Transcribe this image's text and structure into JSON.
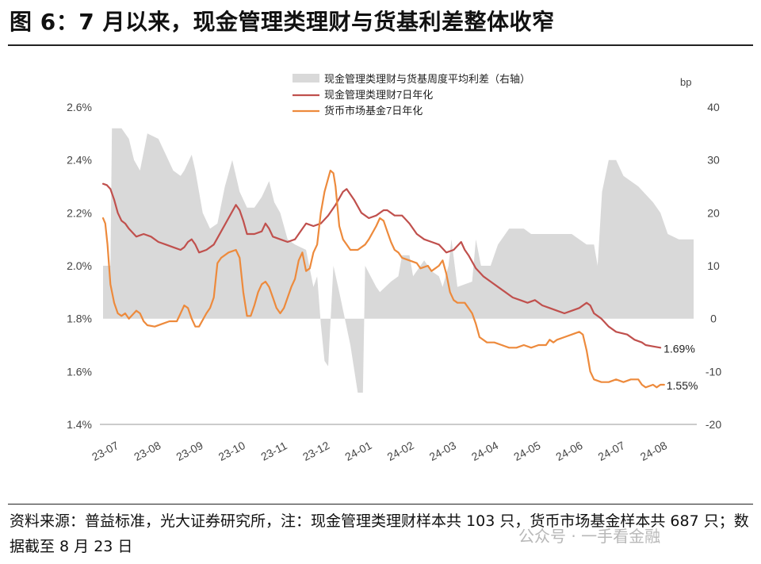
{
  "figure": {
    "title": "图 6：7 月以来，现金管理类理财与货基利差整体收窄",
    "source": "资料来源：普益标准，光大证券研究所，注：现金管理类理财样本共 103 只，货币市场基金样本共 687 只；数据截至 8 月 23 日",
    "watermark": "公众号 · 一手看金融"
  },
  "colors": {
    "spread_area": "#d9d9d9",
    "cash_mgmt_line": "#c0504d",
    "mmf_line": "#ed8a3c",
    "axis_text": "#444444"
  },
  "chart_data": {
    "type": "line",
    "title": "",
    "y_left": {
      "label": "",
      "lim": [
        1.4,
        2.6
      ],
      "ticks": [
        "1.4%",
        "1.6%",
        "1.8%",
        "2.0%",
        "2.2%",
        "2.4%",
        "2.6%"
      ]
    },
    "y_right": {
      "label": "bp",
      "lim": [
        -20,
        40
      ],
      "ticks": [
        "-20",
        "-10",
        "0",
        "10",
        "20",
        "30",
        "40"
      ]
    },
    "x_ticks": [
      "23-07",
      "23-08",
      "23-09",
      "23-10",
      "23-11",
      "23-12",
      "24-01",
      "24-02",
      "24-03",
      "24-04",
      "24-05",
      "24-06",
      "24-07",
      "24-08"
    ],
    "legend_position": "top",
    "end_labels": {
      "cash_mgmt": "1.69%",
      "mmf": "1.55%"
    },
    "series": [
      {
        "name": "现金管理类理财与货基周度平均利差（右轴）",
        "type": "area",
        "axis": "right",
        "values": [
          [
            0,
            10
          ],
          [
            0.1,
            10
          ],
          [
            0.12,
            36
          ],
          [
            0.25,
            36
          ],
          [
            0.35,
            34
          ],
          [
            0.42,
            30
          ],
          [
            0.5,
            28
          ],
          [
            0.6,
            35
          ],
          [
            0.75,
            34
          ],
          [
            0.85,
            31
          ],
          [
            0.95,
            28
          ],
          [
            1.05,
            27
          ],
          [
            1.1,
            28
          ],
          [
            1.2,
            31
          ],
          [
            1.25,
            28
          ],
          [
            1.35,
            20
          ],
          [
            1.45,
            17
          ],
          [
            1.55,
            18
          ],
          [
            1.65,
            25
          ],
          [
            1.75,
            30
          ],
          [
            1.85,
            24
          ],
          [
            1.95,
            21
          ],
          [
            2.05,
            21
          ],
          [
            2.15,
            23
          ],
          [
            2.25,
            26
          ],
          [
            2.32,
            22
          ],
          [
            2.4,
            20
          ],
          [
            2.5,
            15
          ],
          [
            2.6,
            14
          ],
          [
            2.75,
            13
          ],
          [
            2.85,
            6
          ],
          [
            2.9,
            8
          ],
          [
            2.95,
            -1
          ],
          [
            3.0,
            -8
          ],
          [
            3.05,
            -9
          ],
          [
            3.12,
            10
          ],
          [
            3.2,
            5
          ],
          [
            3.35,
            -5
          ],
          [
            3.45,
            -14
          ],
          [
            3.52,
            -14
          ],
          [
            3.55,
            10
          ],
          [
            3.7,
            6
          ],
          [
            3.75,
            5
          ],
          [
            3.9,
            7
          ],
          [
            4.0,
            8
          ],
          [
            4.05,
            12
          ],
          [
            4.15,
            12
          ],
          [
            4.2,
            8
          ],
          [
            4.35,
            11
          ],
          [
            4.45,
            9
          ],
          [
            4.55,
            8
          ],
          [
            4.6,
            6
          ],
          [
            4.68,
            10
          ],
          [
            4.72,
            15
          ],
          [
            4.8,
            6
          ],
          [
            5.0,
            7
          ],
          [
            5.05,
            15
          ],
          [
            5.12,
            10
          ],
          [
            5.25,
            10
          ],
          [
            5.35,
            14
          ],
          [
            5.5,
            17
          ],
          [
            5.7,
            17
          ],
          [
            5.8,
            16
          ],
          [
            6.05,
            16
          ],
          [
            6.35,
            16
          ],
          [
            6.45,
            15
          ],
          [
            6.55,
            14
          ],
          [
            6.65,
            14
          ],
          [
            6.7,
            10
          ],
          [
            6.76,
            24
          ],
          [
            6.85,
            30
          ],
          [
            6.95,
            30
          ],
          [
            7.05,
            27
          ],
          [
            7.25,
            25
          ],
          [
            7.45,
            22
          ],
          [
            7.55,
            20
          ],
          [
            7.65,
            16
          ],
          [
            7.8,
            15
          ],
          [
            7.95,
            15
          ],
          [
            8.0,
            15
          ]
        ]
      },
      {
        "name": "现金管理类理财7日年化",
        "type": "line",
        "axis": "left",
        "values": [
          [
            0,
            2.31
          ],
          [
            0.05,
            2.305
          ],
          [
            0.1,
            2.29
          ],
          [
            0.15,
            2.25
          ],
          [
            0.2,
            2.2
          ],
          [
            0.25,
            2.17
          ],
          [
            0.3,
            2.16
          ],
          [
            0.35,
            2.14
          ],
          [
            0.45,
            2.11
          ],
          [
            0.55,
            2.12
          ],
          [
            0.65,
            2.11
          ],
          [
            0.75,
            2.09
          ],
          [
            0.85,
            2.08
          ],
          [
            0.95,
            2.07
          ],
          [
            1.05,
            2.06
          ],
          [
            1.1,
            2.07
          ],
          [
            1.15,
            2.09
          ],
          [
            1.2,
            2.1
          ],
          [
            1.25,
            2.08
          ],
          [
            1.3,
            2.05
          ],
          [
            1.4,
            2.06
          ],
          [
            1.5,
            2.08
          ],
          [
            1.6,
            2.13
          ],
          [
            1.7,
            2.18
          ],
          [
            1.8,
            2.23
          ],
          [
            1.85,
            2.21
          ],
          [
            1.9,
            2.17
          ],
          [
            1.95,
            2.12
          ],
          [
            2.05,
            2.12
          ],
          [
            2.15,
            2.13
          ],
          [
            2.2,
            2.16
          ],
          [
            2.25,
            2.14
          ],
          [
            2.3,
            2.11
          ],
          [
            2.4,
            2.1
          ],
          [
            2.5,
            2.09
          ],
          [
            2.6,
            2.1
          ],
          [
            2.65,
            2.12
          ],
          [
            2.75,
            2.16
          ],
          [
            2.85,
            2.15
          ],
          [
            2.95,
            2.16
          ],
          [
            3.05,
            2.19
          ],
          [
            3.15,
            2.23
          ],
          [
            3.25,
            2.28
          ],
          [
            3.3,
            2.29
          ],
          [
            3.4,
            2.25
          ],
          [
            3.5,
            2.2
          ],
          [
            3.6,
            2.18
          ],
          [
            3.7,
            2.19
          ],
          [
            3.8,
            2.21
          ],
          [
            3.85,
            2.21
          ],
          [
            3.95,
            2.19
          ],
          [
            4.05,
            2.19
          ],
          [
            4.15,
            2.16
          ],
          [
            4.25,
            2.12
          ],
          [
            4.35,
            2.1
          ],
          [
            4.45,
            2.09
          ],
          [
            4.55,
            2.08
          ],
          [
            4.65,
            2.05
          ],
          [
            4.75,
            2.06
          ],
          [
            4.85,
            2.09
          ],
          [
            4.9,
            2.06
          ],
          [
            4.95,
            2.04
          ],
          [
            5.05,
            1.99
          ],
          [
            5.15,
            1.96
          ],
          [
            5.25,
            1.94
          ],
          [
            5.35,
            1.92
          ],
          [
            5.45,
            1.9
          ],
          [
            5.55,
            1.88
          ],
          [
            5.65,
            1.87
          ],
          [
            5.75,
            1.86
          ],
          [
            5.85,
            1.87
          ],
          [
            5.95,
            1.85
          ],
          [
            6.05,
            1.84
          ],
          [
            6.15,
            1.83
          ],
          [
            6.25,
            1.82
          ],
          [
            6.35,
            1.83
          ],
          [
            6.45,
            1.84
          ],
          [
            6.55,
            1.86
          ],
          [
            6.6,
            1.85
          ],
          [
            6.65,
            1.82
          ],
          [
            6.75,
            1.8
          ],
          [
            6.85,
            1.77
          ],
          [
            6.95,
            1.75
          ],
          [
            7.1,
            1.74
          ],
          [
            7.2,
            1.72
          ],
          [
            7.3,
            1.71
          ],
          [
            7.35,
            1.7
          ],
          [
            7.45,
            1.695
          ],
          [
            7.55,
            1.69
          ]
        ]
      },
      {
        "name": "货币市场基金7日年化",
        "type": "line",
        "axis": "left",
        "values": [
          [
            0,
            2.18
          ],
          [
            0.03,
            2.16
          ],
          [
            0.06,
            2.08
          ],
          [
            0.1,
            1.93
          ],
          [
            0.15,
            1.86
          ],
          [
            0.2,
            1.82
          ],
          [
            0.25,
            1.81
          ],
          [
            0.3,
            1.82
          ],
          [
            0.35,
            1.8
          ],
          [
            0.45,
            1.83
          ],
          [
            0.5,
            1.82
          ],
          [
            0.55,
            1.79
          ],
          [
            0.6,
            1.775
          ],
          [
            0.7,
            1.77
          ],
          [
            0.8,
            1.78
          ],
          [
            0.9,
            1.79
          ],
          [
            1.0,
            1.79
          ],
          [
            1.05,
            1.82
          ],
          [
            1.1,
            1.85
          ],
          [
            1.15,
            1.84
          ],
          [
            1.2,
            1.8
          ],
          [
            1.25,
            1.77
          ],
          [
            1.3,
            1.77
          ],
          [
            1.4,
            1.82
          ],
          [
            1.45,
            1.84
          ],
          [
            1.5,
            1.88
          ],
          [
            1.55,
            2.01
          ],
          [
            1.6,
            2.03
          ],
          [
            1.7,
            2.05
          ],
          [
            1.8,
            2.06
          ],
          [
            1.85,
            2.03
          ],
          [
            1.9,
            1.9
          ],
          [
            1.95,
            1.81
          ],
          [
            2.0,
            1.81
          ],
          [
            2.05,
            1.85
          ],
          [
            2.1,
            1.9
          ],
          [
            2.15,
            1.93
          ],
          [
            2.2,
            1.94
          ],
          [
            2.25,
            1.92
          ],
          [
            2.3,
            1.88
          ],
          [
            2.35,
            1.84
          ],
          [
            2.4,
            1.82
          ],
          [
            2.45,
            1.84
          ],
          [
            2.55,
            1.92
          ],
          [
            2.6,
            1.95
          ],
          [
            2.65,
            2.02
          ],
          [
            2.7,
            2.05
          ],
          [
            2.75,
            1.98
          ],
          [
            2.8,
            1.99
          ],
          [
            2.85,
            2.05
          ],
          [
            2.9,
            2.08
          ],
          [
            2.95,
            2.2
          ],
          [
            3.0,
            2.28
          ],
          [
            3.05,
            2.33
          ],
          [
            3.08,
            2.36
          ],
          [
            3.12,
            2.35
          ],
          [
            3.15,
            2.3
          ],
          [
            3.2,
            2.15
          ],
          [
            3.25,
            2.1
          ],
          [
            3.3,
            2.08
          ],
          [
            3.35,
            2.06
          ],
          [
            3.45,
            2.06
          ],
          [
            3.55,
            2.08
          ],
          [
            3.6,
            2.1
          ],
          [
            3.7,
            2.15
          ],
          [
            3.75,
            2.18
          ],
          [
            3.8,
            2.17
          ],
          [
            3.85,
            2.13
          ],
          [
            3.9,
            2.09
          ],
          [
            3.95,
            2.06
          ],
          [
            4.0,
            2.05
          ],
          [
            4.05,
            2.03
          ],
          [
            4.15,
            2.02
          ],
          [
            4.25,
            2.01
          ],
          [
            4.3,
            1.99
          ],
          [
            4.4,
            2.0
          ],
          [
            4.45,
            1.98
          ],
          [
            4.55,
            2.0
          ],
          [
            4.6,
            2.02
          ],
          [
            4.65,
            1.97
          ],
          [
            4.7,
            1.9
          ],
          [
            4.75,
            1.87
          ],
          [
            4.8,
            1.86
          ],
          [
            4.9,
            1.86
          ],
          [
            4.95,
            1.84
          ],
          [
            5.0,
            1.82
          ],
          [
            5.05,
            1.78
          ],
          [
            5.1,
            1.73
          ],
          [
            5.2,
            1.71
          ],
          [
            5.3,
            1.71
          ],
          [
            5.4,
            1.7
          ],
          [
            5.5,
            1.69
          ],
          [
            5.6,
            1.69
          ],
          [
            5.7,
            1.7
          ],
          [
            5.8,
            1.69
          ],
          [
            5.9,
            1.7
          ],
          [
            6.0,
            1.7
          ],
          [
            6.05,
            1.72
          ],
          [
            6.1,
            1.71
          ],
          [
            6.15,
            1.72
          ],
          [
            6.25,
            1.73
          ],
          [
            6.35,
            1.74
          ],
          [
            6.45,
            1.75
          ],
          [
            6.5,
            1.74
          ],
          [
            6.55,
            1.68
          ],
          [
            6.6,
            1.6
          ],
          [
            6.65,
            1.57
          ],
          [
            6.75,
            1.56
          ],
          [
            6.85,
            1.56
          ],
          [
            6.95,
            1.57
          ],
          [
            7.05,
            1.56
          ],
          [
            7.15,
            1.57
          ],
          [
            7.25,
            1.57
          ],
          [
            7.3,
            1.55
          ],
          [
            7.35,
            1.54
          ],
          [
            7.45,
            1.55
          ],
          [
            7.5,
            1.54
          ],
          [
            7.55,
            1.55
          ],
          [
            7.6,
            1.55
          ]
        ]
      }
    ]
  }
}
